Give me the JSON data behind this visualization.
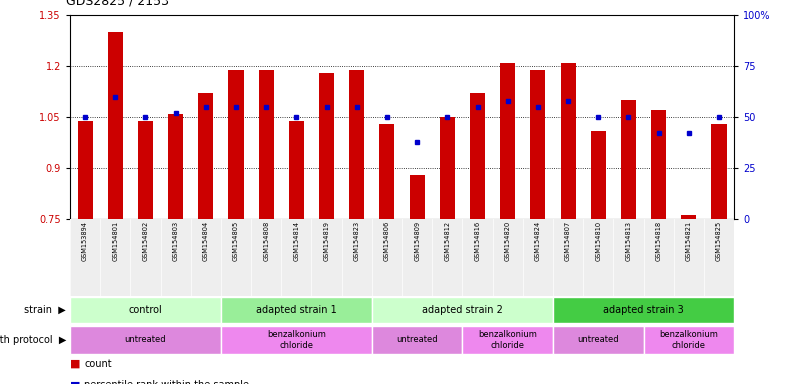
{
  "title": "GDS2825 / 2153",
  "samples": [
    "GSM153894",
    "GSM154801",
    "GSM154802",
    "GSM154803",
    "GSM154804",
    "GSM154805",
    "GSM154808",
    "GSM154814",
    "GSM154819",
    "GSM154823",
    "GSM154806",
    "GSM154809",
    "GSM154812",
    "GSM154816",
    "GSM154820",
    "GSM154824",
    "GSM154807",
    "GSM154810",
    "GSM154813",
    "GSM154818",
    "GSM154821",
    "GSM154825"
  ],
  "bar_heights": [
    1.04,
    1.3,
    1.04,
    1.06,
    1.12,
    1.19,
    1.19,
    1.04,
    1.18,
    1.19,
    1.03,
    0.88,
    1.05,
    1.12,
    1.21,
    1.19,
    1.21,
    1.01,
    1.1,
    1.07,
    0.76,
    1.03
  ],
  "percentile_ranks": [
    50,
    60,
    50,
    52,
    55,
    55,
    55,
    50,
    55,
    55,
    50,
    38,
    50,
    55,
    58,
    55,
    58,
    50,
    50,
    42,
    42,
    50
  ],
  "ylim_left": [
    0.75,
    1.35
  ],
  "ylim_right": [
    0,
    100
  ],
  "bar_color": "#cc0000",
  "dot_color": "#0000cc",
  "bar_width": 0.5,
  "strain_defs": [
    {
      "label": "control",
      "start": 0,
      "end": 4,
      "color": "#ccffcc"
    },
    {
      "label": "adapted strain 1",
      "start": 5,
      "end": 9,
      "color": "#99ee99"
    },
    {
      "label": "adapted strain 2",
      "start": 10,
      "end": 15,
      "color": "#ccffcc"
    },
    {
      "label": "adapted strain 3",
      "start": 16,
      "end": 21,
      "color": "#44cc44"
    }
  ],
  "proto_defs": [
    {
      "label": "untreated",
      "start": 0,
      "end": 4,
      "color": "#dd88dd"
    },
    {
      "label": "benzalkonium\nchloride",
      "start": 5,
      "end": 9,
      "color": "#ee88ee"
    },
    {
      "label": "untreated",
      "start": 10,
      "end": 12,
      "color": "#dd88dd"
    },
    {
      "label": "benzalkonium\nchloride",
      "start": 13,
      "end": 15,
      "color": "#ee88ee"
    },
    {
      "label": "untreated",
      "start": 16,
      "end": 18,
      "color": "#dd88dd"
    },
    {
      "label": "benzalkonium\nchloride",
      "start": 19,
      "end": 21,
      "color": "#ee88ee"
    }
  ],
  "grid_left_ticks": [
    0.75,
    0.9,
    1.05,
    1.2,
    1.35
  ],
  "grid_right_ticks": [
    0,
    25,
    50,
    75,
    100
  ],
  "dotted_lines": [
    0.9,
    1.05,
    1.2
  ],
  "bg_color": "#eeeeee"
}
